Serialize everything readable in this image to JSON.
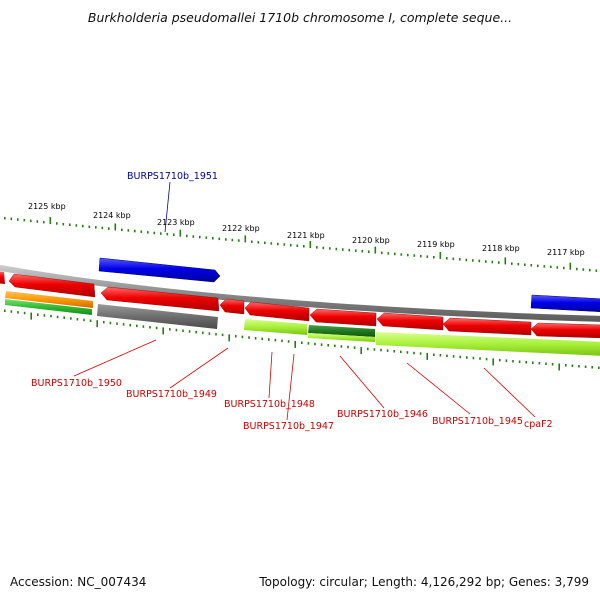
{
  "title": "Burkholderia pseudomallei 1710b chromosome I, complete seque...",
  "accession": "Accession: NC_007434",
  "summary": "Topology: circular; Length: 4,126,292 bp; Genes: 3,799",
  "colors": {
    "forward_gene": "#0000e0",
    "cds": "#e60000",
    "rna": "#ff9900",
    "tick": "#2a7a1a",
    "label_forward": "#00009c",
    "label_reverse": "#cc0000",
    "backbone": "#888888"
  },
  "ruler": {
    "unit": "kbp",
    "ticks": [
      {
        "label": "2125 kbp"
      },
      {
        "label": "2124 kbp"
      },
      {
        "label": "2123 kbp"
      },
      {
        "label": "2122 kbp"
      },
      {
        "label": "2121 kbp"
      },
      {
        "label": "2120 kbp"
      },
      {
        "label": "2119 kbp"
      },
      {
        "label": "2118 kbp"
      },
      {
        "label": "2117 kbp"
      }
    ]
  },
  "gene_labels": [
    {
      "text": "BURPS1710b_1951",
      "strand": "forward"
    },
    {
      "text": "BURPS1710b_1950",
      "strand": "reverse"
    },
    {
      "text": "BURPS1710b_1949",
      "strand": "reverse"
    },
    {
      "text": "BURPS1710b_1948",
      "strand": "reverse"
    },
    {
      "text": "BURPS1710b_1947",
      "strand": "reverse"
    },
    {
      "text": "BURPS1710b_1946",
      "strand": "reverse"
    },
    {
      "text": "BURPS1710b_1945",
      "strand": "reverse"
    },
    {
      "text": "cpaF2",
      "strand": "reverse"
    }
  ]
}
